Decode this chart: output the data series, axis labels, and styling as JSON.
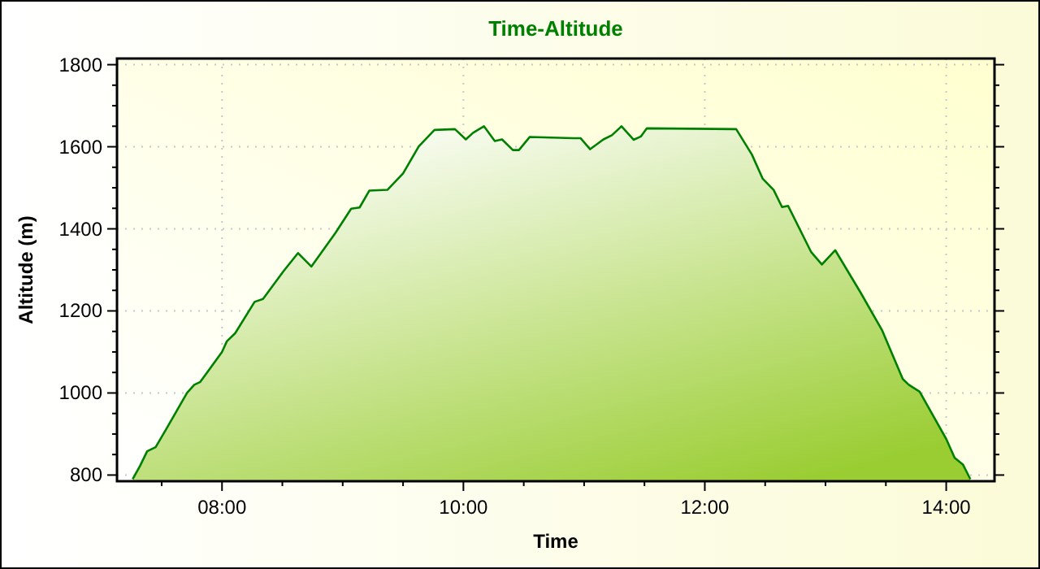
{
  "chart_data": {
    "type": "area",
    "title": "Time-Altitude",
    "xlabel": "Time",
    "ylabel": "Altitude (m)",
    "x": [
      7.26,
      7.32,
      7.38,
      7.45,
      7.53,
      7.71,
      7.77,
      7.82,
      8.0,
      8.04,
      8.11,
      8.27,
      8.34,
      8.51,
      8.63,
      8.74,
      8.94,
      9.07,
      9.14,
      9.22,
      9.37,
      9.5,
      9.63,
      9.76,
      9.93,
      10.02,
      10.08,
      10.17,
      10.26,
      10.32,
      10.41,
      10.46,
      10.55,
      10.91,
      10.97,
      11.05,
      11.16,
      11.23,
      11.31,
      11.41,
      11.47,
      11.52,
      12.26,
      12.39,
      12.48,
      12.57,
      12.64,
      12.69,
      12.88,
      12.97,
      13.08,
      13.29,
      13.47,
      13.64,
      13.69,
      13.78,
      14.0,
      14.07,
      14.14,
      14.2
    ],
    "series": [
      {
        "color": "#008000",
        "values": [
          790,
          822,
          858,
          868,
          908,
          1000,
          1020,
          1027,
          1100,
          1126,
          1146,
          1222,
          1229,
          1297,
          1341,
          1308,
          1390,
          1449,
          1452,
          1493,
          1495,
          1535,
          1601,
          1641,
          1643,
          1618,
          1634,
          1650,
          1614,
          1618,
          1592,
          1592,
          1624,
          1621,
          1621,
          1594,
          1618,
          1628,
          1650,
          1617,
          1625,
          1645,
          1643,
          1581,
          1522,
          1495,
          1453,
          1456,
          1344,
          1313,
          1348,
          1245,
          1152,
          1034,
          1020,
          1003,
          888,
          842,
          825,
          790
        ]
      }
    ],
    "xlim": [
      7.13,
      14.4
    ],
    "xticks": [
      {
        "value": 7.5,
        "label": null
      },
      {
        "value": 8,
        "label": "08:00"
      },
      {
        "value": 8.5,
        "label": null
      },
      {
        "value": 9,
        "label": null
      },
      {
        "value": 9.5,
        "label": null
      },
      {
        "value": 10,
        "label": "10:00"
      },
      {
        "value": 10.5,
        "label": null
      },
      {
        "value": 11,
        "label": null
      },
      {
        "value": 11.5,
        "label": null
      },
      {
        "value": 12,
        "label": "12:00"
      },
      {
        "value": 12.5,
        "label": null
      },
      {
        "value": 13,
        "label": null
      },
      {
        "value": 13.5,
        "label": null
      },
      {
        "value": 14,
        "label": "14:00"
      }
    ],
    "ylim": [
      785,
      1815
    ],
    "yticks": [
      800,
      {
        "value": 850,
        "label": null
      },
      {
        "value": 900,
        "label": null
      },
      {
        "value": 950,
        "label": null
      },
      1000,
      {
        "value": 1050,
        "label": null
      },
      {
        "value": 1100,
        "label": null
      },
      {
        "value": 1150,
        "label": null
      },
      1200,
      {
        "value": 1250,
        "label": null
      },
      {
        "value": 1300,
        "label": null
      },
      {
        "value": 1350,
        "label": null
      },
      1400,
      {
        "value": 1450,
        "label": null
      },
      {
        "value": 1500,
        "label": null
      },
      {
        "value": 1550,
        "label": null
      },
      1600,
      {
        "value": 1650,
        "label": null
      },
      {
        "value": 1700,
        "label": null
      },
      {
        "value": 1750,
        "label": null
      },
      1800
    ],
    "grid": true
  }
}
